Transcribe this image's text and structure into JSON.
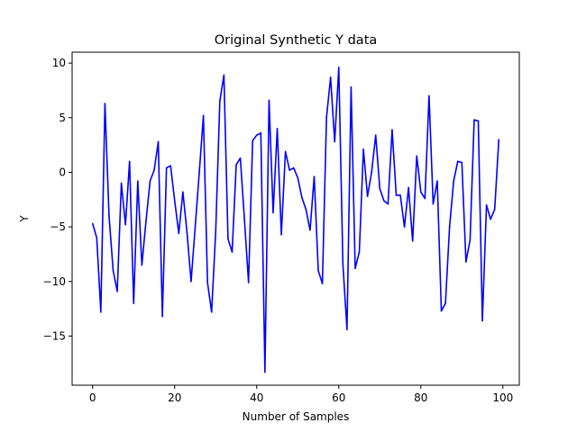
{
  "chart_data": {
    "type": "line",
    "title": "Original Synthetic Y data",
    "xlabel": "Number of Samples",
    "ylabel": "Y",
    "xlim": [
      -5,
      104
    ],
    "ylim": [
      -19.5,
      11
    ],
    "xticks": [
      0,
      20,
      40,
      60,
      80,
      100
    ],
    "yticks": [
      -15,
      -10,
      -5,
      0,
      5,
      10
    ],
    "xtick_labels": [
      "0",
      "20",
      "40",
      "60",
      "80",
      "100"
    ],
    "ytick_labels": [
      "−15",
      "−10",
      "−5",
      "0",
      "5",
      "10"
    ],
    "grid": false,
    "series": [
      {
        "color": "#0000ff",
        "x": [
          0,
          1,
          2,
          3,
          4,
          5,
          6,
          7,
          8,
          9,
          10,
          11,
          12,
          13,
          14,
          15,
          16,
          17,
          18,
          19,
          20,
          21,
          22,
          23,
          24,
          25,
          26,
          27,
          28,
          29,
          30,
          31,
          32,
          33,
          34,
          35,
          36,
          37,
          38,
          39,
          40,
          41,
          42,
          43,
          44,
          45,
          46,
          47,
          48,
          49,
          50,
          51,
          52,
          53,
          54,
          55,
          56,
          57,
          58,
          59,
          60,
          61,
          62,
          63,
          64,
          65,
          66,
          67,
          68,
          69,
          70,
          71,
          72,
          73,
          74,
          75,
          76,
          77,
          78,
          79,
          80,
          81,
          82,
          83,
          84,
          85,
          86,
          87,
          88,
          89,
          90,
          91,
          92,
          93,
          94,
          95,
          96,
          97,
          98,
          99
        ],
        "values": [
          -4.7,
          -6.0,
          -12.8,
          6.3,
          -4.0,
          -9.0,
          -10.9,
          -1.0,
          -4.8,
          1.0,
          -12.0,
          -0.8,
          -8.5,
          -4.5,
          -0.8,
          0.2,
          2.8,
          -13.2,
          0.4,
          0.6,
          -2.6,
          -5.6,
          -1.8,
          -5.5,
          -10.0,
          -5.0,
          0.0,
          5.2,
          -10.1,
          -12.8,
          -5.4,
          6.5,
          8.9,
          -6.1,
          -7.3,
          0.7,
          1.3,
          -4.3,
          -10.1,
          2.9,
          3.4,
          3.6,
          -18.3,
          6.6,
          -3.7,
          4.0,
          -5.7,
          1.9,
          0.2,
          0.4,
          -0.5,
          -2.3,
          -3.4,
          -5.3,
          -0.4,
          -9.0,
          -10.2,
          5.0,
          8.7,
          2.8,
          9.6,
          -8.4,
          -14.4,
          7.8,
          -8.8,
          -7.3,
          2.1,
          -2.2,
          0.0,
          3.4,
          -1.5,
          -2.6,
          -2.9,
          3.9,
          -2.1,
          -2.1,
          -5.0,
          -1.4,
          -6.3,
          1.5,
          -1.8,
          -2.4,
          7.0,
          -2.9,
          -0.8,
          -12.7,
          -12.0,
          -5.0,
          -0.8,
          1.0,
          0.9,
          -8.2,
          -6.2,
          4.8,
          4.7,
          -13.6,
          -3.0,
          -4.3,
          -3.4,
          3.0
        ]
      }
    ]
  }
}
